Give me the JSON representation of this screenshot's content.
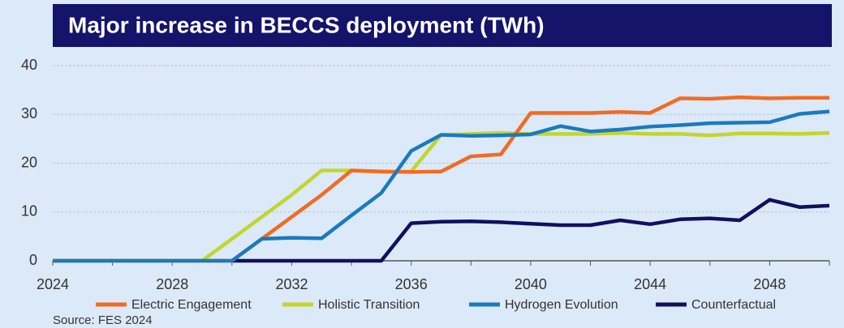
{
  "chart_data": {
    "type": "line",
    "title": "Major increase in BECCS deployment (TWh)",
    "source": "Source: FES 2024",
    "x": [
      2024,
      2025,
      2026,
      2027,
      2028,
      2029,
      2030,
      2031,
      2032,
      2033,
      2034,
      2035,
      2036,
      2037,
      2038,
      2039,
      2040,
      2041,
      2042,
      2043,
      2044,
      2045,
      2046,
      2047,
      2048,
      2049,
      2050
    ],
    "series": [
      {
        "name": "Counterfactual",
        "color": "#10105e",
        "values": [
          null,
          null,
          null,
          null,
          null,
          null,
          0,
          0,
          0,
          0,
          0,
          0,
          7.7,
          8,
          8.1,
          7.9,
          7.6,
          7.3,
          7.3,
          8.3,
          7.5,
          8.5,
          8.7,
          8.3,
          12.5,
          11,
          11.3
        ]
      },
      {
        "name": "Holistic Transition",
        "color": "#c3d52d",
        "values": [
          0,
          0,
          0,
          0,
          0,
          0,
          4.5,
          9,
          13.5,
          18.5,
          18.5,
          18.2,
          18.3,
          25.8,
          26,
          26.2,
          26,
          26,
          26,
          26.2,
          26,
          26,
          25.7,
          26.1,
          26.1,
          26,
          26.2
        ]
      },
      {
        "name": "Electric Engagement",
        "color": "#f26b21",
        "values": [
          0,
          0,
          0,
          0,
          0,
          0,
          0,
          4.5,
          9,
          13.5,
          18.5,
          18.3,
          18.2,
          18.3,
          21.4,
          21.8,
          30.3,
          30.3,
          30.3,
          30.5,
          30.3,
          33.3,
          33.2,
          33.5,
          33.3,
          33.4,
          33.4
        ]
      },
      {
        "name": "Hydrogen Evolution",
        "color": "#1a7abf",
        "values": [
          0,
          0,
          0,
          0,
          0,
          0,
          0,
          4.5,
          4.7,
          4.6,
          9.3,
          13.9,
          22.5,
          25.8,
          25.6,
          25.7,
          25.9,
          27.6,
          26.5,
          26.9,
          27.5,
          27.8,
          28.2,
          28.3,
          28.4,
          30.1,
          30.6
        ]
      }
    ],
    "legend_order": [
      2,
      1,
      3,
      0
    ],
    "xlim": [
      2024,
      2050
    ],
    "xticks": [
      2024,
      2028,
      2032,
      2036,
      2040,
      2044,
      2048
    ],
    "xminor_ticks": [
      2026,
      2030,
      2034,
      2038,
      2042,
      2046,
      2050
    ],
    "ylim": [
      0,
      40
    ],
    "yticks": [
      0,
      10,
      20,
      30,
      40
    ],
    "grid": true
  }
}
